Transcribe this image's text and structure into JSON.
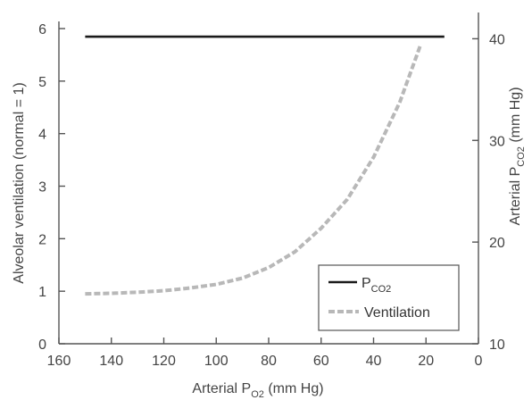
{
  "chart_data": {
    "type": "line",
    "x_axis": {
      "label_main": "Arterial P",
      "label_sub": "O2",
      "label_unit": " (mm Hg)",
      "range": [
        160,
        0
      ],
      "ticks": [
        160,
        140,
        120,
        100,
        80,
        60,
        40,
        20,
        0
      ],
      "reversed": true
    },
    "y_left": {
      "label": "Alveolar ventilation (normal = 1)",
      "range": [
        0,
        6
      ],
      "ticks": [
        0,
        1,
        2,
        3,
        4,
        5,
        6
      ]
    },
    "y_right": {
      "label_main": "Arterial P",
      "label_sub": "CO2",
      "label_unit": " (mm Hg)",
      "range": [
        10,
        41
      ],
      "ticks": [
        10,
        20,
        30,
        40
      ]
    },
    "grid": false,
    "legend_position": "bottom-right",
    "series": [
      {
        "name_main": "P",
        "name_sub": "CO2",
        "axis": "right",
        "style": "solid",
        "color": "#1a1a1a",
        "x": [
          150,
          13
        ],
        "y": [
          40.2,
          40.2
        ]
      },
      {
        "name_main": "Ventilation",
        "name_sub": "",
        "axis": "left",
        "style": "dashed",
        "color": "#b8b8b8",
        "x": [
          150,
          140,
          130,
          120,
          110,
          100,
          90,
          80,
          70,
          60,
          50,
          40,
          30,
          22
        ],
        "y": [
          0.95,
          0.96,
          0.98,
          1.01,
          1.06,
          1.13,
          1.25,
          1.45,
          1.75,
          2.2,
          2.75,
          3.55,
          4.6,
          5.7
        ]
      }
    ]
  }
}
